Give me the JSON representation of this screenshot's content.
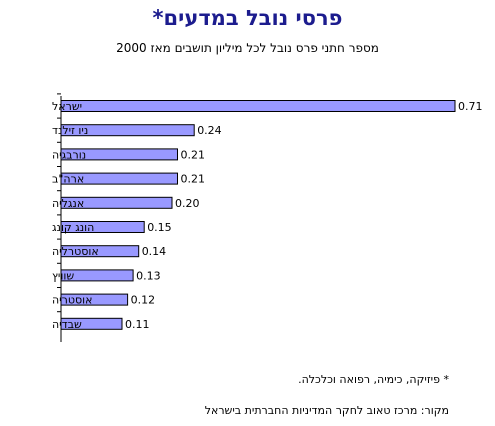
{
  "title": "פרסי נובל במדעים*",
  "subtitle": "מספר חתני פרס נובל לכל מיליון תושבים מאז 2000",
  "footnote": "* פיזיקה, כימיה, רפואה וכלכלה.",
  "source": "מקור: מרכז טאוב לחקר המדיניות החברתית בישראל",
  "colors": {
    "bar_fill": "#9999ff",
    "title": "#1c1c8e"
  },
  "chart_data": {
    "type": "bar",
    "orientation": "horizontal",
    "title": "פרסי נובל במדעים*",
    "subtitle": "מספר חתני פרס נובל לכל מיליון תושבים מאז 2000",
    "categories": [
      "ישראל",
      "ניו זילנד",
      "נורבגיה",
      "ארה\"ב",
      "אנגליה",
      "הונג קונג",
      "אוסטרליה",
      "שוויץ",
      "אוסטריה",
      "שבדיה"
    ],
    "values": [
      0.71,
      0.24,
      0.21,
      0.21,
      0.2,
      0.15,
      0.14,
      0.13,
      0.12,
      0.11
    ],
    "value_labels": [
      "0.71",
      "0.24",
      "0.21",
      "0.21",
      "0.20",
      "0.15",
      "0.14",
      "0.13",
      "0.12",
      "0.11"
    ],
    "xlim": [
      0,
      0.71
    ],
    "grid": false,
    "legend": "none"
  }
}
